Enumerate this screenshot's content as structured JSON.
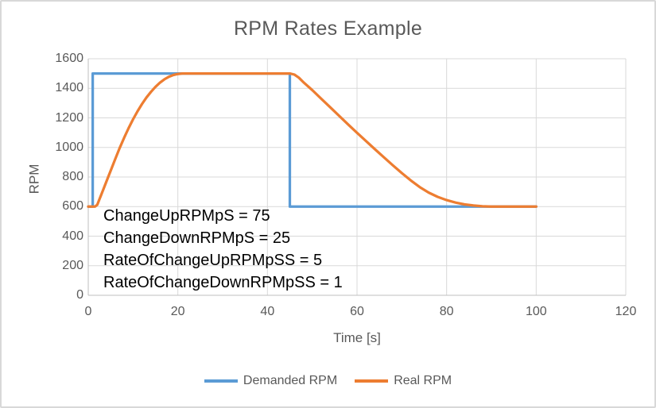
{
  "window": {
    "background_color": "#ffffff",
    "border_color": "#d8d8d8"
  },
  "chart_data": {
    "type": "line",
    "title": "RPM Rates Example",
    "xlabel": "Time [s]",
    "ylabel": "RPM",
    "xlim": [
      0,
      120
    ],
    "ylim": [
      0,
      1600
    ],
    "x_ticks": [
      0,
      20,
      40,
      60,
      80,
      100,
      120
    ],
    "y_ticks": [
      0,
      200,
      400,
      600,
      800,
      1000,
      1200,
      1400,
      1600
    ],
    "grid": true,
    "gridline_color": "#d9d9d9",
    "axis_line_color": "#bfbfbf",
    "text_color": "#595959",
    "annotation_text_color": "#000000",
    "legend_position": "bottom",
    "annotations": [
      "ChangeUpRPMpS = 75",
      "ChangeDownRPMpS = 25",
      "RateOfChangeUpRPMpSS = 5",
      "RateOfChangeDownRPMpSS = 1"
    ],
    "series": [
      {
        "name": "Demanded RPM",
        "color": "#5b9bd5",
        "points": [
          [
            0,
            600
          ],
          [
            1,
            600
          ],
          [
            1,
            1500
          ],
          [
            45,
            1500
          ],
          [
            45,
            600
          ],
          [
            100,
            600
          ]
        ]
      },
      {
        "name": "Real RPM",
        "color": "#ed7d31",
        "points": [
          [
            0,
            600
          ],
          [
            1.5,
            600
          ],
          [
            2,
            612
          ],
          [
            3,
            688
          ],
          [
            4,
            765
          ],
          [
            5,
            843
          ],
          [
            6,
            920
          ],
          [
            7,
            995
          ],
          [
            8,
            1065
          ],
          [
            9,
            1130
          ],
          [
            10,
            1190
          ],
          [
            11,
            1245
          ],
          [
            12,
            1294
          ],
          [
            13,
            1338
          ],
          [
            14,
            1376
          ],
          [
            15,
            1410
          ],
          [
            16,
            1438
          ],
          [
            17,
            1461
          ],
          [
            18,
            1478
          ],
          [
            19,
            1490
          ],
          [
            20,
            1497
          ],
          [
            21,
            1500
          ],
          [
            45,
            1500
          ],
          [
            46,
            1493
          ],
          [
            47,
            1472
          ],
          [
            48,
            1442
          ],
          [
            50,
            1388
          ],
          [
            52,
            1330
          ],
          [
            54,
            1272
          ],
          [
            56,
            1214
          ],
          [
            58,
            1156
          ],
          [
            60,
            1099
          ],
          [
            62,
            1043
          ],
          [
            64,
            988
          ],
          [
            66,
            933
          ],
          [
            68,
            879
          ],
          [
            70,
            827
          ],
          [
            72,
            777
          ],
          [
            74,
            732
          ],
          [
            76,
            695
          ],
          [
            78,
            666
          ],
          [
            80,
            644
          ],
          [
            82,
            627
          ],
          [
            84,
            615
          ],
          [
            86,
            607
          ],
          [
            88,
            602
          ],
          [
            90,
            600
          ],
          [
            100,
            600
          ]
        ]
      }
    ]
  }
}
